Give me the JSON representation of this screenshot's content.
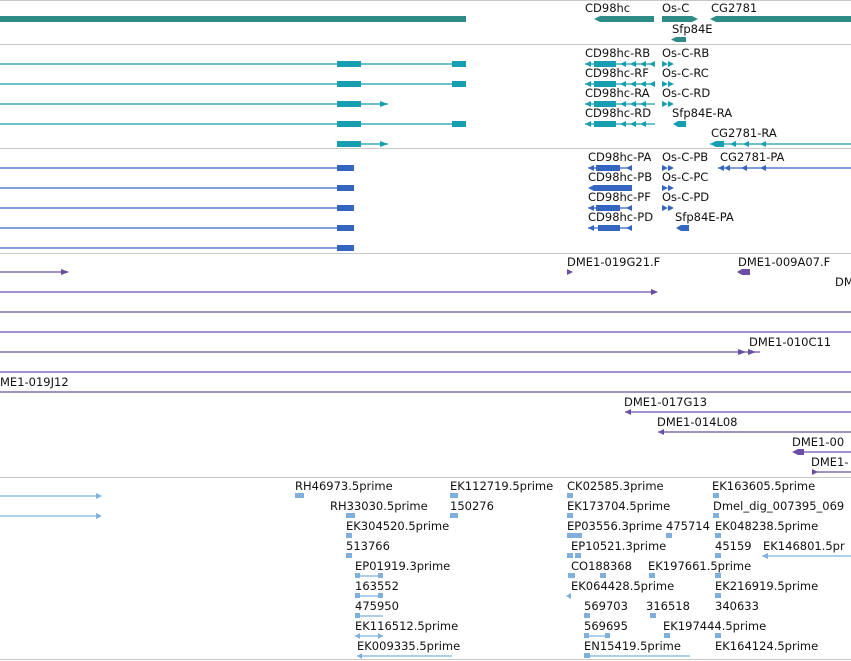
{
  "colors": {
    "gene": "#2e8b87",
    "transcript_dmel": "#159fb0",
    "transcript_pa": "#3465c0",
    "bac_clone": "#6a4ea6",
    "est": "#7fb0dc",
    "separator": "#c8c8c8"
  },
  "tracks": {
    "genes": {
      "labels": [
        "CD98hc",
        "Os-C",
        "CG2781",
        "Sfp84E"
      ]
    },
    "transcripts": {
      "labels": [
        "CD98hc-RB",
        "Os-C-RB",
        "CD98hc-RF",
        "Os-C-RC",
        "CD98hc-RA",
        "Os-C-RD",
        "CD98hc-RD",
        "Sfp84E-RA",
        "CG2781-RA"
      ]
    },
    "proteins": {
      "labels": [
        "CD98hc-PA",
        "Os-C-PB",
        "CG2781-PA",
        "CD98hc-PB",
        "Os-C-PC",
        "CD98hc-PF",
        "Os-C-PD",
        "CD98hc-PD",
        "Sfp84E-PA"
      ]
    },
    "bac_clones": {
      "labels": [
        "DME1-019G21.F",
        "DME1-009A07.F",
        "DM",
        "DME1-010C11",
        "ME1-019J12",
        "DME1-017G13",
        "DME1-014L08",
        "DME1-00",
        "DME1-"
      ]
    },
    "ests": {
      "labels": [
        "RH46973.5prime",
        "EK112719.5prime",
        "CK02585.3prime",
        "EK163605.5prime",
        "RH33030.5prime",
        "150276",
        "EK173704.5prime",
        "Dmel_dig_007395_069",
        "EK304520.5prime",
        "EP03556.3prime",
        "475714",
        "EK048238.5prime",
        "513766",
        "EP10521.3prime",
        "45159",
        "EK146801.5pr",
        "EP01919.3prime",
        "CO188368",
        "EK197661.5prime",
        "163552",
        "EK064428.5prime",
        "EK216919.5prime",
        "475950",
        "569703",
        "316518",
        "340633",
        "EK116512.5prime",
        "569695",
        "EK197444.5prime",
        "EK009335.5prime",
        "EN15419.5prime",
        "EK164124.5prime"
      ]
    }
  }
}
